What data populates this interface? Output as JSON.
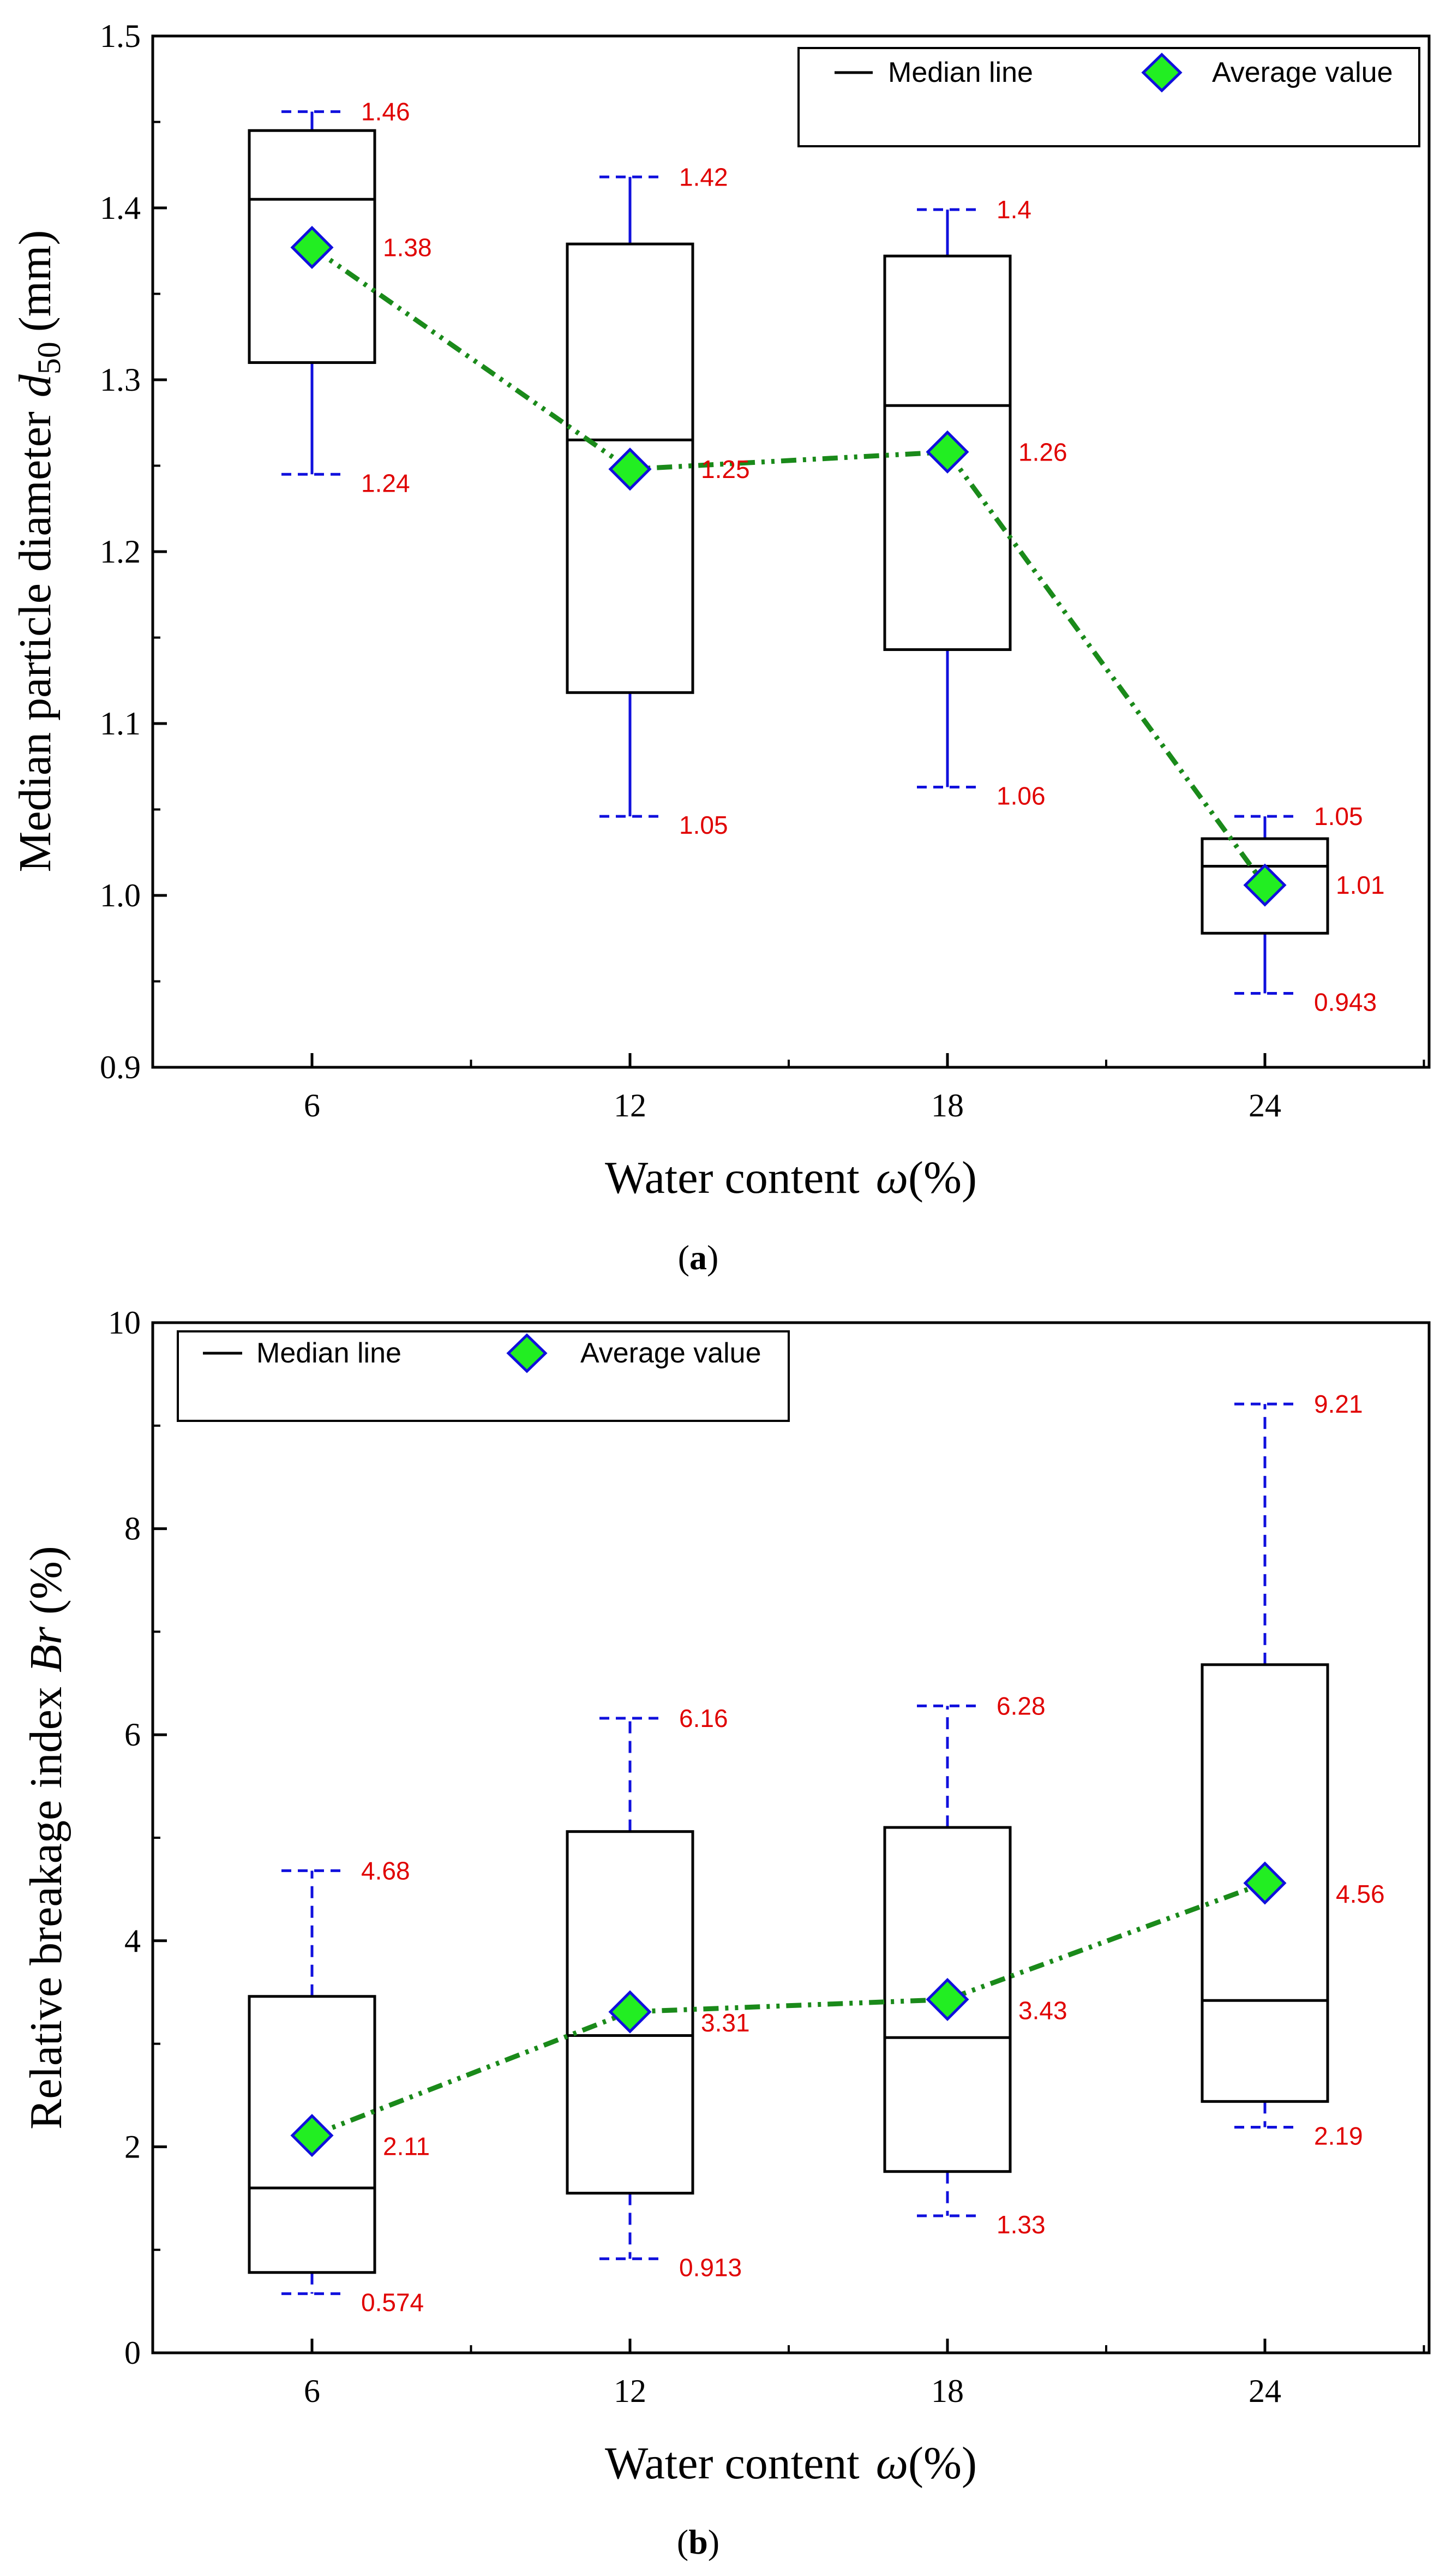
{
  "chart_data": [
    {
      "type": "box",
      "panel_label": "a",
      "xlabel_text": "Water content",
      "xlabel_symbol": "ω",
      "xlabel_unit": "(%)",
      "ylabel_text": "Median particle diameter",
      "ylabel_symbol": "d",
      "ylabel_subscript": "50",
      "ylabel_unit": "(mm)",
      "ylim": [
        0.9,
        1.5
      ],
      "yticks": [
        "0.9",
        "1.0",
        "1.1",
        "1.2",
        "1.3",
        "1.4",
        "1.5"
      ],
      "categories": [
        "6",
        "12",
        "18",
        "24"
      ],
      "legend": {
        "median_label": "Median line",
        "average_label": "Average value",
        "position": "top-right"
      },
      "boxes": [
        {
          "x": "6",
          "whisker_low": 1.245,
          "q1": 1.31,
          "median": 1.405,
          "q3": 1.445,
          "whisker_high": 1.456,
          "mean": 1.377,
          "max_label": "1.46",
          "mean_label": "1.38",
          "min_label": "1.24"
        },
        {
          "x": "12",
          "whisker_low": 1.046,
          "q1": 1.118,
          "median": 1.265,
          "q3": 1.379,
          "whisker_high": 1.418,
          "mean": 1.248,
          "max_label": "1.42",
          "mean_label": "1.25",
          "min_label": "1.05"
        },
        {
          "x": "18",
          "whisker_low": 1.063,
          "q1": 1.143,
          "median": 1.285,
          "q3": 1.372,
          "whisker_high": 1.399,
          "mean": 1.258,
          "max_label": "1.4",
          "mean_label": "1.26",
          "min_label": "1.06"
        },
        {
          "x": "24",
          "whisker_low": 0.943,
          "q1": 0.978,
          "median": 1.017,
          "q3": 1.033,
          "whisker_high": 1.046,
          "mean": 1.006,
          "max_label": "1.05",
          "mean_label": "1.01",
          "min_label": "0.943"
        }
      ]
    },
    {
      "type": "box",
      "panel_label": "b",
      "xlabel_text": "Water content",
      "xlabel_symbol": "ω",
      "xlabel_unit": "(%)",
      "ylabel_text": "Relative breakage index",
      "ylabel_symbol": "Br",
      "ylabel_subscript": "",
      "ylabel_unit": "(%)",
      "ylim": [
        0,
        10
      ],
      "yticks": [
        "0",
        "2",
        "4",
        "6",
        "8",
        "10"
      ],
      "categories": [
        "6",
        "12",
        "18",
        "24"
      ],
      "legend": {
        "median_label": "Median line",
        "average_label": "Average value",
        "position": "top-left"
      },
      "boxes": [
        {
          "x": "6",
          "whisker_low": 0.574,
          "q1": 0.78,
          "median": 1.6,
          "q3": 3.46,
          "whisker_high": 4.68,
          "mean": 2.11,
          "max_label": "4.68",
          "mean_label": "2.11",
          "min_label": "0.574"
        },
        {
          "x": "12",
          "whisker_low": 0.913,
          "q1": 1.55,
          "median": 3.08,
          "q3": 5.06,
          "whisker_high": 6.16,
          "mean": 3.31,
          "max_label": "6.16",
          "mean_label": "3.31",
          "min_label": "0.913"
        },
        {
          "x": "18",
          "whisker_low": 1.33,
          "q1": 1.76,
          "median": 3.06,
          "q3": 5.1,
          "whisker_high": 6.28,
          "mean": 3.43,
          "max_label": "6.28",
          "mean_label": "3.43",
          "min_label": "1.33"
        },
        {
          "x": "24",
          "whisker_low": 2.19,
          "q1": 2.44,
          "median": 3.42,
          "q3": 6.68,
          "whisker_high": 9.21,
          "mean": 4.56,
          "max_label": "9.21",
          "mean_label": "4.56",
          "min_label": "2.19"
        }
      ]
    }
  ],
  "colors": {
    "axis": "#000000",
    "box": "#000000",
    "whisker": "#1010dd",
    "data_label": "#e00000",
    "mean_fill": "#22ee22",
    "mean_edge": "#1010dd",
    "mean_line": "#1a8a1a"
  },
  "icons": {
    "mean_marker": "green-diamond-marker",
    "median_symbol": "median-line-swatch"
  }
}
